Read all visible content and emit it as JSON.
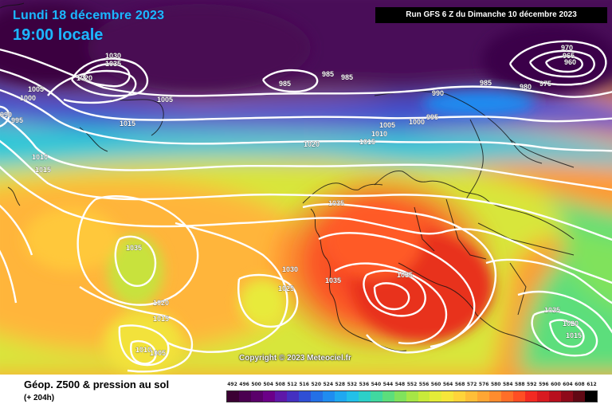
{
  "header": {
    "date": "Lundi 18 décembre 2023",
    "time": "19:00 locale",
    "run": "Run GFS 6 Z du Dimanche 10 décembre 2023"
  },
  "copyright": "Copyright © 2023 Meteociel.fr",
  "footer": {
    "title": "Géop. Z500 & pression au sol",
    "subtitle": "(+ 204h)"
  },
  "legend": {
    "values": [
      "492",
      "496",
      "500",
      "504",
      "508",
      "512",
      "516",
      "520",
      "524",
      "528",
      "532",
      "536",
      "540",
      "544",
      "548",
      "552",
      "556",
      "560",
      "564",
      "568",
      "572",
      "576",
      "580",
      "584",
      "588",
      "592",
      "596",
      "600",
      "604",
      "608",
      "612"
    ],
    "colors": [
      "#3b0033",
      "#4a0050",
      "#5a006a",
      "#6b0088",
      "#5e18a8",
      "#4430c0",
      "#2f4fd4",
      "#2470e6",
      "#1f8cf0",
      "#1fa8f0",
      "#22c0e8",
      "#2cd0c8",
      "#40d8a0",
      "#5cde7c",
      "#80e25c",
      "#a6e646",
      "#c8ea3a",
      "#e4ec38",
      "#f6e63a",
      "#ffd43a",
      "#ffbe38",
      "#ffa634",
      "#ff8c2e",
      "#ff6e28",
      "#ff4e24",
      "#f32a22",
      "#d81a20",
      "#b8101e",
      "#8e0a1a",
      "#600814",
      "#000000"
    ]
  },
  "isobars": [
    {
      "value": "1030"
    },
    {
      "value": "1035"
    },
    {
      "value": "1020"
    },
    {
      "value": "1005"
    },
    {
      "value": "1000"
    },
    {
      "value": "995"
    },
    {
      "value": "990"
    },
    {
      "value": "1005"
    },
    {
      "value": "1015"
    },
    {
      "value": "985"
    },
    {
      "value": "985"
    },
    {
      "value": "985"
    },
    {
      "value": "990"
    },
    {
      "value": "985"
    },
    {
      "value": "980"
    },
    {
      "value": "975"
    },
    {
      "value": "970"
    },
    {
      "value": "965"
    },
    {
      "value": "960"
    },
    {
      "value": "995"
    },
    {
      "value": "1000"
    },
    {
      "value": "1005"
    },
    {
      "value": "1010"
    },
    {
      "value": "1015"
    },
    {
      "value": "1020"
    },
    {
      "value": "1010"
    },
    {
      "value": "1015"
    },
    {
      "value": "1035"
    },
    {
      "value": "1035"
    },
    {
      "value": "1030"
    },
    {
      "value": "1025"
    },
    {
      "value": "1035"
    },
    {
      "value": "1035"
    },
    {
      "value": "1020"
    },
    {
      "value": "1015"
    },
    {
      "value": "1010"
    },
    {
      "value": "1005"
    },
    {
      "value": "1025"
    },
    {
      "value": "1020"
    },
    {
      "value": "1015"
    }
  ]
}
